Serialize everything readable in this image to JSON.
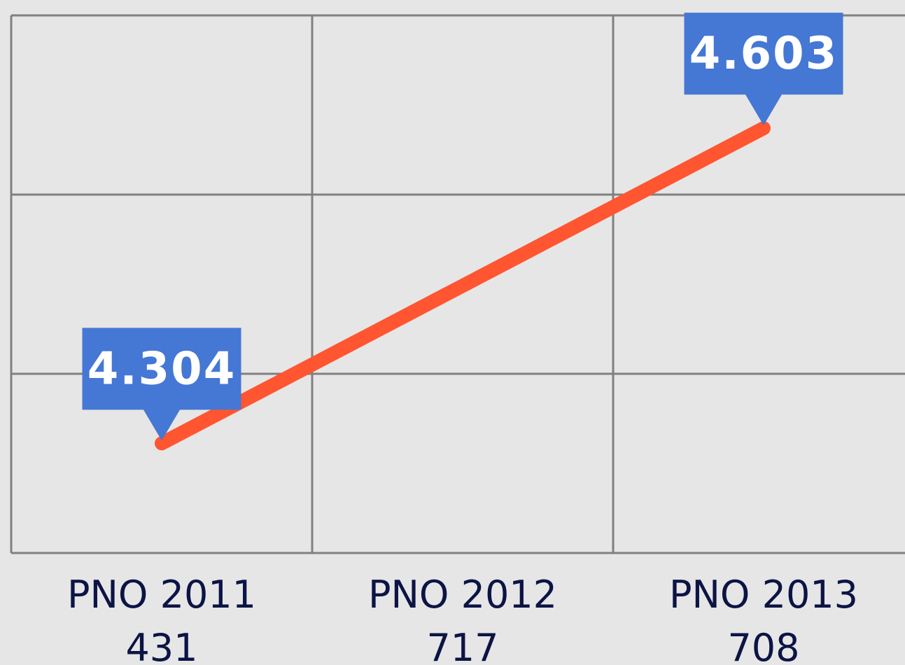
{
  "chart_data": {
    "type": "line",
    "categories": [
      [
        "PNO 2011",
        "431"
      ],
      [
        "PNO 2012",
        "717"
      ],
      [
        "PNO 2013",
        "708"
      ]
    ],
    "series": [
      {
        "color": "#ff5530",
        "values": [
          4.304,
          null,
          4.603
        ]
      }
    ],
    "span_gaps": true,
    "label_color": "#4577d4",
    "ylim": [
      4.2,
      4.71
    ],
    "yticks": [
      4.2,
      4.37,
      4.54,
      4.71
    ],
    "grid": true
  }
}
